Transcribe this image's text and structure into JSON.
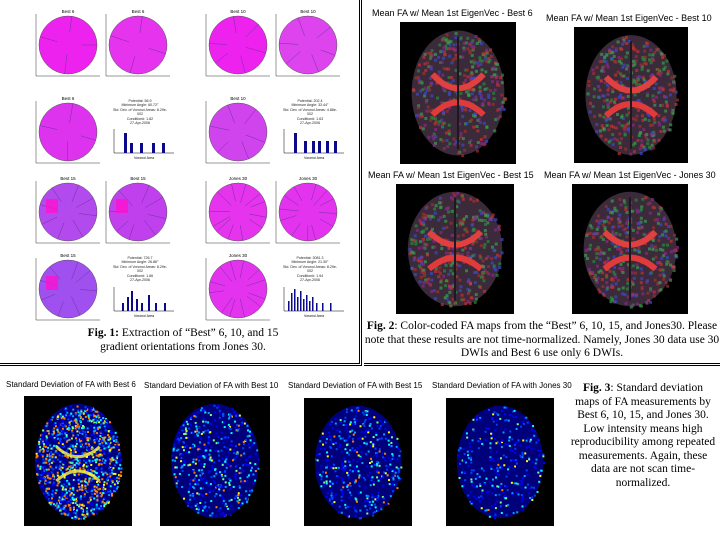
{
  "fig1": {
    "sphere_titles": [
      "Best 6",
      "Best 6",
      "Best 10",
      "Best 10",
      "Best 6",
      "Best 10",
      "Best 15",
      "Best 15",
      "Jones 30",
      "Jones 30",
      "Best 15",
      "Jones 30"
    ],
    "stats": [
      {
        "l1": "Potential: 56.9",
        "l2": "Minimum Angle: 60.72°",
        "l3": "Std. Dev. of Voronoi Areas: 8.29e-002",
        "l4": "Condition#: 1.82",
        "l5": "27-Apr-2006"
      },
      {
        "l1": "Potential: 202.4",
        "l2": "Minimum Angle: 33.44°",
        "l3": "Std. Dev. of Voronoi Areas: 4.88e-002",
        "l4": "Condition#: 1.63",
        "l5": "27-Apr-2006"
      },
      {
        "l1": "Potential: 726.7",
        "l2": "Minimum Angle: 26.86°",
        "l3": "Std. Dev. of Voronoi Areas: 8.29e-002",
        "l4": "Condition#: 1.66",
        "l5": "27-Apr-2006"
      },
      {
        "l1": "Potential: 3081.3",
        "l2": "Minimum Angle: 21.30°",
        "l3": "Std. Dev. of Voronoi Areas: 8.29e-002",
        "l4": "Condition#: 1.94",
        "l5": "27-Apr-2006"
      }
    ],
    "hist_xlabel": "Voronoi Area",
    "caption_label": "Fig. 1:",
    "caption_text": " Extraction of “Best” 6, 10, and 15 gradient orientations from Jones 30."
  },
  "fig2": {
    "titles": [
      "Mean FA w/ Mean 1st EigenVec - Best 6",
      "Mean FA w/ Mean 1st EigenVec - Best 10",
      "Mean FA w/ Mean 1st EigenVec - Best 15",
      "Mean FA w/ Mean 1st EigenVec - Jones 30"
    ],
    "caption_label": "Fig. 2",
    "caption_text": ": Color-coded FA maps from the “Best” 6, 10, 15, and Jones30. Please note that these results are not time-normalized. Namely, Jones 30 data use 30 DWIs and Best 6 use only 6 DWIs."
  },
  "fig3": {
    "titles": [
      "Standard Deviation of FA with Best 6",
      "Standard Deviation of FA with Best 10",
      "Standard Deviation of FA with Best 15",
      "Standard Deviation of FA with Jones 30"
    ],
    "caption_label": "Fig. 3",
    "caption_text": ": Standard deviation maps of FA measurements by Best 6, 10, 15, and Jones 30. Low intensity means high reproducibility among repeated measurements. Again, these data are not scan time-normalized."
  }
}
